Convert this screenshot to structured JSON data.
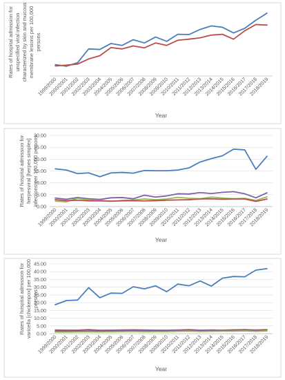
{
  "chart_data": [
    {
      "type": "line",
      "x": [
        "1999/2000",
        "2000/2001",
        "2001/2002",
        "2002/2003",
        "2003/2004",
        "2004/2005",
        "2005/2006",
        "2006/2007",
        "2007/2008",
        "2008/2009",
        "2009/2010",
        "2010/2011",
        "2011/2012",
        "2012/2013",
        "2013/2014",
        "2014/2015",
        "2015/2016",
        "2016/2017",
        "2017/2018",
        "2018/2019"
      ],
      "ylabel_lines": [
        "Rates of hospital admission for",
        "unspecified viral infection",
        "characterized by skin and mucous",
        "membrane lesions per 100,000",
        "persons"
      ],
      "xlabel": "Year",
      "ylim": [
        0.0,
        2.5
      ],
      "grid": false,
      "y_ticks": [],
      "series": [
        {
          "color": "#4a7ebb",
          "values": [
            0.42,
            0.36,
            0.49,
            1.0,
            0.98,
            1.2,
            1.13,
            1.34,
            1.22,
            1.44,
            1.28,
            1.54,
            1.53,
            1.72,
            1.85,
            1.8,
            1.59,
            1.76,
            2.06,
            2.32
          ]
        },
        {
          "color": "#be4b48",
          "values": [
            0.37,
            0.4,
            0.44,
            0.63,
            0.75,
            1.05,
            1.0,
            1.11,
            1.04,
            1.22,
            1.13,
            1.32,
            1.36,
            1.41,
            1.51,
            1.54,
            1.36,
            1.67,
            1.9,
            1.88
          ]
        }
      ]
    },
    {
      "type": "line",
      "x": [
        "1999/2000",
        "2000/2001",
        "2001/2002",
        "2002/2003",
        "2003/2004",
        "2004/2005",
        "2005/2006",
        "2006/2007",
        "2007/2008",
        "2008/2009",
        "2009/2010",
        "2010/2011",
        "2011/2012",
        "2012/2013",
        "2013/2014",
        "2014/2015",
        "2015/2016",
        "2016/2017",
        "2017/2018",
        "2018/2019"
      ],
      "ylabel_lines": [
        "Rates of hospital admission for",
        "herpesviral [herpes simplex]",
        "infections per 100,000 persons"
      ],
      "xlabel": "Year",
      "ylim": [
        0.0,
        30.0
      ],
      "grid": true,
      "y_ticks": [
        "0.00",
        "5.00",
        "10.00",
        "15.00",
        "20.00",
        "25.00",
        "30.00"
      ],
      "series": [
        {
          "color": "#4a7ebb",
          "values": [
            15.9,
            15.4,
            13.9,
            14.2,
            12.6,
            14.2,
            14.4,
            14.1,
            15.2,
            15.1,
            15.1,
            15.4,
            16.3,
            18.8,
            20.2,
            21.4,
            24.2,
            23.9,
            15.7,
            21.2
          ]
        },
        {
          "color": "#7f5fa8",
          "values": [
            3.6,
            3.1,
            3.8,
            3.3,
            3.0,
            3.7,
            3.8,
            3.3,
            4.8,
            4.0,
            4.5,
            5.4,
            5.3,
            5.9,
            5.5,
            6.0,
            6.3,
            5.4,
            3.7,
            5.8
          ]
        },
        {
          "color": "#98b954",
          "values": [
            2.3,
            2.0,
            3.5,
            2.8,
            2.6,
            2.2,
            2.6,
            2.8,
            3.2,
            2.9,
            3.2,
            3.9,
            3.5,
            3.3,
            4.0,
            3.6,
            3.3,
            3.5,
            2.6,
            4.1
          ]
        },
        {
          "color": "#be4b48",
          "values": [
            2.9,
            2.5,
            2.7,
            2.4,
            2.4,
            2.3,
            2.4,
            2.5,
            2.4,
            2.5,
            2.7,
            2.8,
            2.9,
            3.2,
            3.3,
            3.1,
            3.2,
            3.2,
            2.2,
            3.2
          ]
        }
      ]
    },
    {
      "type": "line",
      "x": [
        "1999/2000",
        "2000/2001",
        "2001/2002",
        "2002/2003",
        "2003/2004",
        "2004/2005",
        "2005/2006",
        "2006/2007",
        "2007/2008",
        "2008/2009",
        "2009/2010",
        "2010/2011",
        "2011/2012",
        "2012/2013",
        "2013/2014",
        "2014/2015",
        "2015/2016",
        "2016/2017",
        "2017/2018",
        "2018/2019"
      ],
      "ylabel_lines": [
        "Rates of hospital admission for",
        "varicella [chickenpox] per 100,000",
        "persons"
      ],
      "xlabel": "Year",
      "ylim": [
        0.0,
        45.0
      ],
      "grid": true,
      "y_ticks": [
        "0.00",
        "5.00",
        "10.00",
        "15.00",
        "20.00",
        "25.00",
        "30.00",
        "35.00",
        "40.00",
        "45.00"
      ],
      "series": [
        {
          "color": "#4a7ebb",
          "values": [
            18.7,
            21.4,
            21.7,
            29.7,
            23.2,
            26.2,
            26.0,
            30.3,
            28.9,
            30.9,
            27.1,
            32.0,
            30.9,
            34.0,
            30.7,
            35.8,
            36.9,
            36.7,
            41.0,
            42.0
          ]
        },
        {
          "color": "#be4b48",
          "values": [
            2.4,
            2.3,
            2.3,
            2.6,
            2.2,
            2.3,
            2.4,
            2.5,
            2.4,
            2.3,
            2.2,
            2.4,
            2.6,
            2.3,
            2.4,
            2.3,
            2.5,
            2.6,
            2.4,
            2.6
          ]
        },
        {
          "color": "#7f5fa8",
          "values": [
            1.6,
            1.6,
            1.6,
            1.8,
            1.6,
            1.7,
            1.9,
            2.0,
            2.0,
            1.7,
            1.8,
            2.0,
            2.2,
            1.9,
            1.9,
            2.0,
            2.1,
            2.6,
            2.1,
            2.4
          ]
        },
        {
          "color": "#98b954",
          "values": [
            1.0,
            1.0,
            1.1,
            1.2,
            1.1,
            1.2,
            1.3,
            1.4,
            1.2,
            1.3,
            1.3,
            1.5,
            1.6,
            1.4,
            1.5,
            1.6,
            1.6,
            1.8,
            1.5,
            1.8
          ]
        }
      ]
    }
  ]
}
